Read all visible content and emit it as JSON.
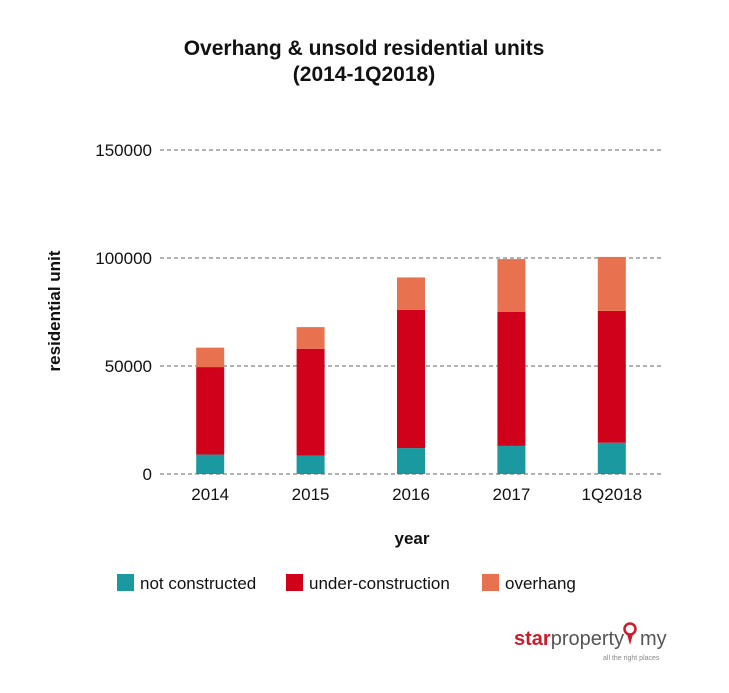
{
  "chart_data": {
    "type": "bar",
    "stacked": true,
    "title_line1": "Overhang & unsold residential units",
    "title_line2": "(2014-1Q2018)",
    "xlabel": "year",
    "ylabel": "residential unit",
    "categories": [
      "2014",
      "2015",
      "2016",
      "2017",
      "1Q2018"
    ],
    "ylim": [
      0,
      150000
    ],
    "yticks": [
      0,
      50000,
      100000,
      150000
    ],
    "ytick_labels": [
      "0",
      "50000",
      "100000",
      "150000"
    ],
    "grid": true,
    "legend_position": "bottom",
    "series": [
      {
        "name": "not constructed",
        "color": "#1a9aa0",
        "values": [
          9000,
          8500,
          12000,
          13000,
          14500
        ]
      },
      {
        "name": "under-construction",
        "color": "#d0021b",
        "values": [
          40500,
          49500,
          64000,
          62000,
          61000
        ]
      },
      {
        "name": "overhang",
        "color": "#e8714f",
        "values": [
          9000,
          10000,
          15000,
          24500,
          25000
        ]
      }
    ]
  },
  "brand": {
    "name_star": "star",
    "name_property": "property",
    "name_my": "my",
    "tagline": "all the right places",
    "pin_color": "#cc1b2b"
  }
}
